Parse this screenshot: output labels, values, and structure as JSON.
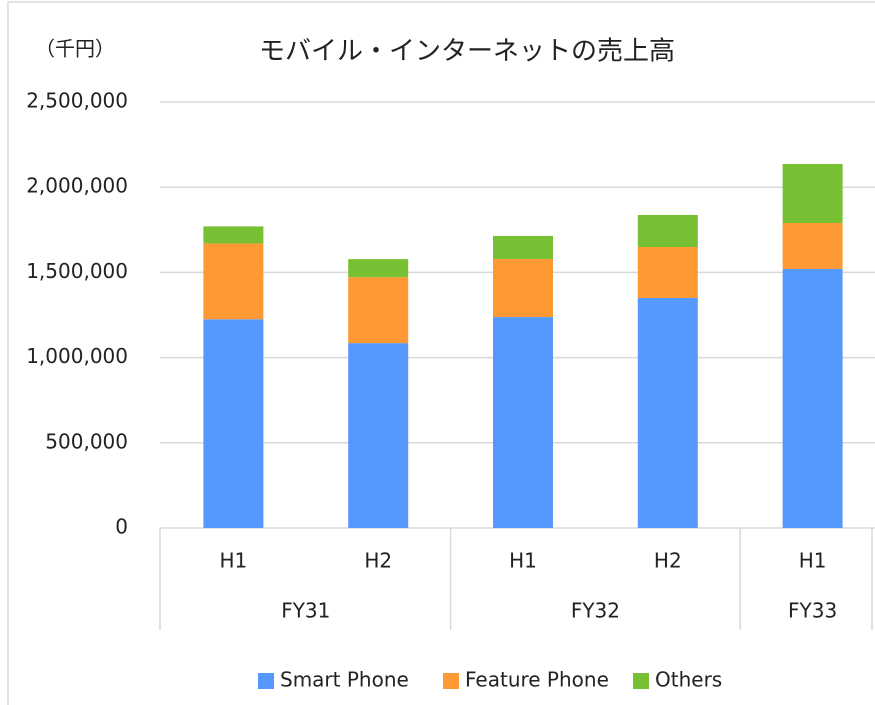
{
  "chart_data": {
    "type": "stacked_bar",
    "title": "モバイル・インターネットの売上高",
    "ylabel": "（千円）",
    "groups": [
      {
        "name": "FY31",
        "categories": [
          "H1",
          "H2"
        ]
      },
      {
        "name": "FY32",
        "categories": [
          "H1",
          "H2"
        ]
      },
      {
        "name": "FY33",
        "categories": [
          "H1"
        ]
      }
    ],
    "series": [
      {
        "name": "Smart Phone",
        "color": "#5599ff",
        "values": [
          1225000,
          1085000,
          1238000,
          1350000,
          1520000
        ]
      },
      {
        "name": "Feature Phone",
        "color": "#ff9933",
        "values": [
          445000,
          387000,
          341000,
          299000,
          270000
        ]
      },
      {
        "name": "Others",
        "color": "#77c033",
        "values": [
          100000,
          106000,
          135000,
          188000,
          346000
        ]
      }
    ],
    "ylim": [
      0,
      2500000
    ],
    "yticks": [
      0,
      {
        "value": 500000,
        "label": "500,000"
      },
      {
        "value": 1000000,
        "label": "1,000,000"
      },
      {
        "value": 1500000,
        "label": "1,500,000"
      },
      {
        "value": 2000000,
        "label": "2,000,000"
      },
      {
        "value": 2500000,
        "label": "2,500,000"
      }
    ],
    "grid": true,
    "legend": "bottom"
  }
}
